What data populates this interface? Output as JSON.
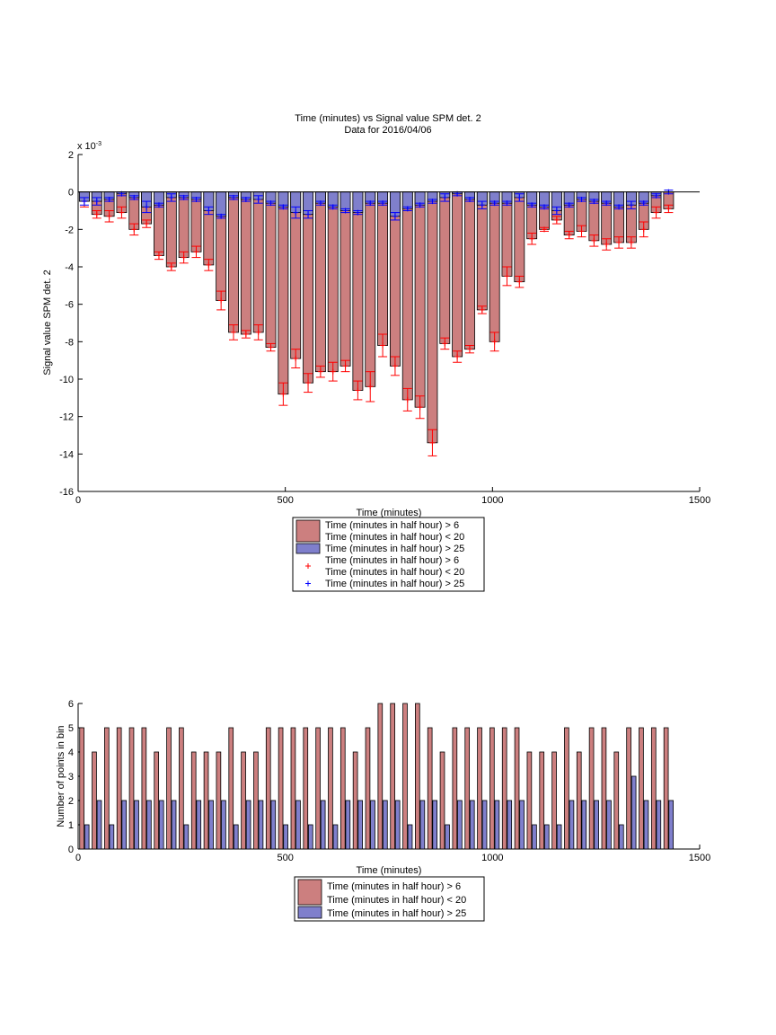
{
  "chart_data": [
    {
      "type": "bar",
      "title": "Time (minutes) vs Signal value SPM det. 2",
      "subtitle": "Data for 2016/04/06",
      "xlabel": "Time (minutes)",
      "ylabel": "Signal value SPM det. 2",
      "exponent_label": "x 10^-3",
      "exponent_base": "x 10",
      "exponent_power": "-3",
      "xlim": [
        0,
        1500
      ],
      "ylim": [
        -16,
        2
      ],
      "xticks": [
        "0",
        "500",
        "1000",
        "1500"
      ],
      "yticks": [
        "2",
        "0",
        "-2",
        "-4",
        "-6",
        "-8",
        "-10",
        "-12",
        "-14",
        "-16"
      ],
      "x": [
        15,
        45,
        75,
        105,
        135,
        165,
        195,
        225,
        255,
        285,
        315,
        345,
        375,
        405,
        435,
        465,
        495,
        525,
        555,
        585,
        615,
        645,
        675,
        705,
        735,
        765,
        795,
        825,
        855,
        885,
        915,
        945,
        975,
        1005,
        1035,
        1065,
        1095,
        1125,
        1155,
        1185,
        1215,
        1245,
        1275,
        1305,
        1335,
        1365,
        1395,
        1425
      ],
      "series": [
        {
          "name": "Time (minutes in half hour) > 6\nTime (minutes in half hour) < 20",
          "color": "#cc7f7f",
          "marker_color": "#ff0000",
          "values": [
            -0.5,
            -1.2,
            -1.3,
            -1.1,
            -2.0,
            -1.7,
            -3.4,
            -4.0,
            -3.5,
            -3.2,
            -3.9,
            -5.8,
            -7.5,
            -7.6,
            -7.5,
            -8.3,
            -10.8,
            -8.9,
            -10.2,
            -9.6,
            -9.6,
            -9.3,
            -10.6,
            -10.4,
            -8.2,
            -9.3,
            -11.1,
            -11.5,
            -13.4,
            -8.1,
            -8.8,
            -8.4,
            -6.3,
            -8.0,
            -4.5,
            -4.8,
            -2.5,
            -2.0,
            -1.5,
            -2.3,
            -2.1,
            -2.6,
            -2.8,
            -2.7,
            -2.7,
            -2.0,
            -1.1,
            -0.9
          ],
          "errors": [
            0.3,
            0.2,
            0.3,
            0.3,
            0.3,
            0.2,
            0.2,
            0.2,
            0.3,
            0.3,
            0.3,
            0.5,
            0.4,
            0.2,
            0.4,
            0.2,
            0.6,
            0.5,
            0.5,
            0.3,
            0.5,
            0.3,
            0.5,
            0.8,
            0.6,
            0.5,
            0.6,
            0.6,
            0.7,
            0.3,
            0.3,
            0.2,
            0.2,
            0.5,
            0.5,
            0.3,
            0.3,
            0.1,
            0.2,
            0.2,
            0.3,
            0.3,
            0.3,
            0.3,
            0.3,
            0.4,
            0.3,
            0.2
          ]
        },
        {
          "name": "Time (minutes in half hour) > 25",
          "color": "#7f7fcc",
          "marker_color": "#0000ff",
          "values": [
            -0.5,
            -0.5,
            -0.4,
            -0.1,
            -0.3,
            -0.8,
            -0.7,
            -0.3,
            -0.3,
            -0.4,
            -1.0,
            -1.3,
            -0.3,
            -0.4,
            -0.4,
            -0.6,
            -0.8,
            -1.1,
            -1.2,
            -0.6,
            -0.8,
            -1.0,
            -1.1,
            -0.6,
            -0.6,
            -1.3,
            -0.9,
            -0.7,
            -0.5,
            -0.3,
            -0.1,
            -0.4,
            -0.7,
            -0.6,
            -0.6,
            -0.3,
            -0.7,
            -0.8,
            -1.0,
            -0.7,
            -0.4,
            -0.5,
            -0.6,
            -0.8,
            -0.7,
            -0.6,
            -0.2,
            0.0
          ],
          "errors": [
            0.2,
            0.2,
            0.1,
            0.1,
            0.1,
            0.3,
            0.1,
            0.2,
            0.1,
            0.1,
            0.2,
            0.1,
            0.1,
            0.1,
            0.2,
            0.1,
            0.1,
            0.3,
            0.2,
            0.1,
            0.1,
            0.1,
            0.1,
            0.1,
            0.1,
            0.2,
            0.1,
            0.1,
            0.1,
            0.2,
            0.1,
            0.1,
            0.2,
            0.1,
            0.1,
            0.2,
            0.1,
            0.1,
            0.2,
            0.1,
            0.1,
            0.1,
            0.1,
            0.1,
            0.2,
            0.1,
            0.1,
            0.1
          ]
        }
      ],
      "legend": [
        {
          "label": "Time (minutes in half hour) > 6",
          "kind": "bar",
          "color": "#cc7f7f"
        },
        {
          "label": "Time (minutes in half hour) < 20",
          "kind": "none",
          "color": ""
        },
        {
          "label": "Time (minutes in half hour) > 25",
          "kind": "bar",
          "color": "#7f7fcc"
        },
        {
          "label": "Time (minutes in half hour) > 6",
          "kind": "marker",
          "color": "#ff0000"
        },
        {
          "label": "Time (minutes in half hour) < 20",
          "kind": "none",
          "color": ""
        },
        {
          "label": "Time (minutes in half hour) > 25",
          "kind": "marker",
          "color": "#0000ff"
        }
      ],
      "legend_position": "below"
    },
    {
      "type": "bar",
      "xlabel": "Time (minutes)",
      "ylabel": "Number of points in bin",
      "xlim": [
        0,
        1500
      ],
      "ylim": [
        0,
        6
      ],
      "xticks": [
        "0",
        "500",
        "1000",
        "1500"
      ],
      "yticks": [
        "0",
        "1",
        "2",
        "3",
        "4",
        "5",
        "6"
      ],
      "x": [
        15,
        45,
        75,
        105,
        135,
        165,
        195,
        225,
        255,
        285,
        315,
        345,
        375,
        405,
        435,
        465,
        495,
        525,
        555,
        585,
        615,
        645,
        675,
        705,
        735,
        765,
        795,
        825,
        855,
        885,
        915,
        945,
        975,
        1005,
        1035,
        1065,
        1095,
        1125,
        1155,
        1185,
        1215,
        1245,
        1275,
        1305,
        1335,
        1365,
        1395,
        1425
      ],
      "series": [
        {
          "name": "Time (minutes in half hour) > 6\nTime (minutes in half hour) < 20",
          "color": "#cc7f7f",
          "values": [
            5,
            4,
            5,
            5,
            5,
            5,
            4,
            5,
            5,
            4,
            4,
            4,
            5,
            4,
            4,
            5,
            5,
            5,
            5,
            5,
            5,
            5,
            4,
            5,
            6,
            6,
            6,
            6,
            5,
            4,
            5,
            5,
            5,
            5,
            5,
            5,
            4,
            4,
            4,
            5,
            4,
            5,
            5,
            4,
            5,
            5,
            5,
            5
          ]
        },
        {
          "name": "Time (minutes in half hour) > 25",
          "color": "#7f7fcc",
          "values": [
            1,
            2,
            1,
            2,
            2,
            2,
            2,
            2,
            1,
            2,
            2,
            2,
            1,
            2,
            2,
            2,
            1,
            2,
            1,
            2,
            1,
            2,
            2,
            2,
            2,
            2,
            1,
            2,
            2,
            1,
            2,
            2,
            2,
            2,
            2,
            2,
            1,
            1,
            1,
            2,
            2,
            2,
            2,
            1,
            3,
            2,
            2,
            2
          ]
        }
      ],
      "legend": [
        {
          "label": "Time (minutes in half hour) > 6",
          "kind": "bar",
          "color": "#cc7f7f"
        },
        {
          "label": "Time (minutes in half hour) < 20",
          "kind": "none",
          "color": ""
        },
        {
          "label": "Time (minutes in half hour) > 25",
          "kind": "bar",
          "color": "#7f7fcc"
        }
      ],
      "legend_position": "below"
    }
  ]
}
